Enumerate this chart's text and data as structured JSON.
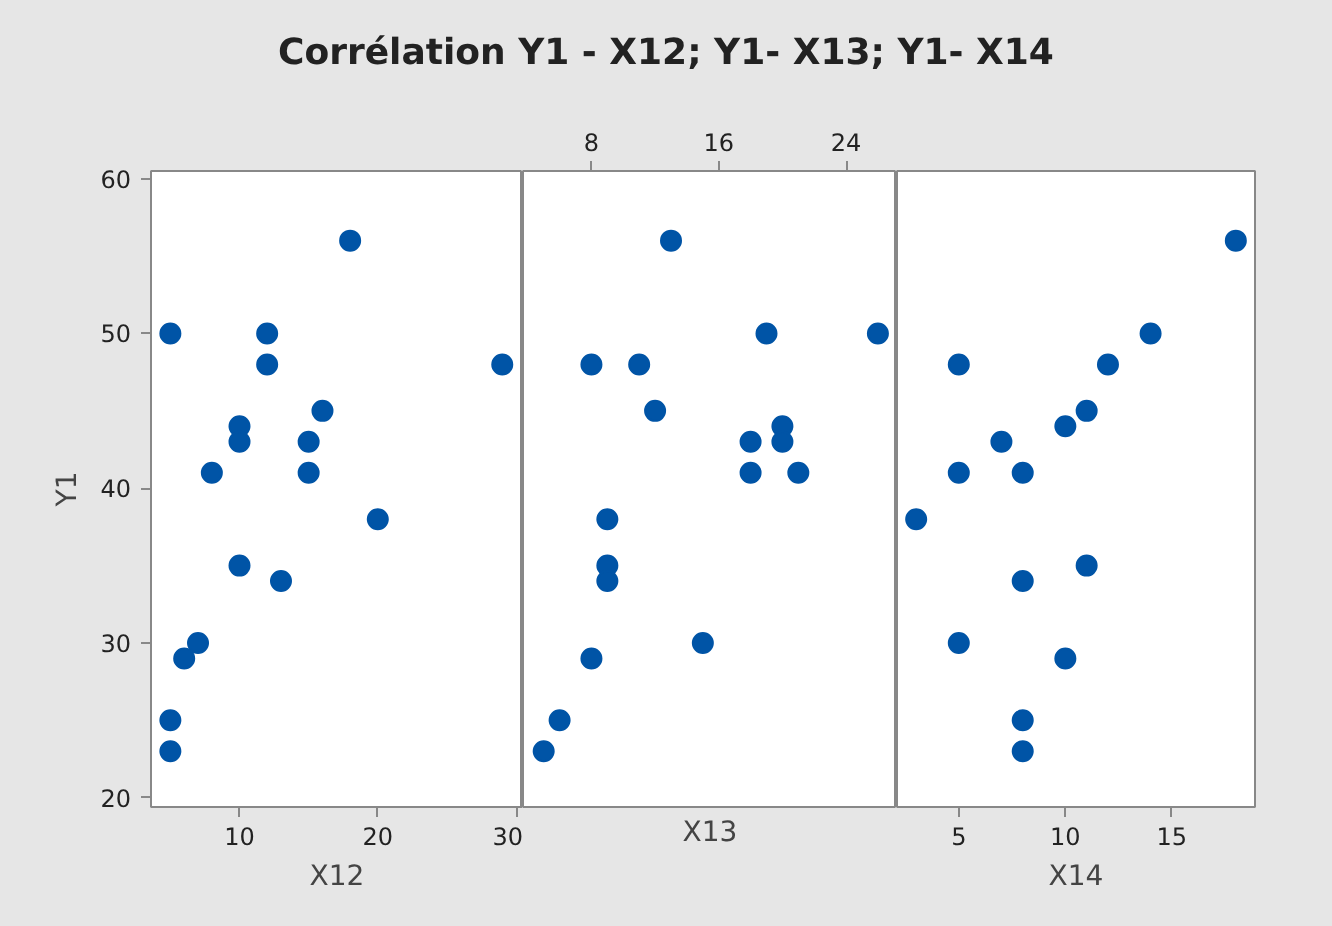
{
  "chart_data": [
    {
      "type": "scatter",
      "title": "Corrélation Y1 - X12; Y1- X13; Y1- X14",
      "xlabel": "X12",
      "ylabel": "Y1",
      "marker": "circle",
      "grid": false,
      "xlim": [
        3.6,
        30.5
      ],
      "xticks": [
        10,
        20,
        30
      ],
      "ylim": [
        19.4,
        60.5
      ],
      "yticks": [
        20,
        30,
        40,
        50,
        60
      ],
      "x": [
        5,
        18,
        12,
        12,
        29,
        16,
        10,
        10,
        15,
        8,
        15,
        20,
        10,
        13,
        7,
        6,
        5,
        5
      ],
      "series": [
        {
          "color": "#0054a6",
          "values": [
            50,
            56,
            50,
            48,
            48,
            45,
            44,
            43,
            43,
            41,
            41,
            38,
            35,
            34,
            30,
            29,
            25,
            23
          ]
        }
      ]
    },
    {
      "type": "scatter",
      "xlabel": "X13",
      "marker": "circle",
      "grid": false,
      "xlim": [
        3.7,
        27.2
      ],
      "xticks": [
        8,
        16,
        24
      ],
      "ylim": [
        19.4,
        60.5
      ],
      "tick_labels": "x",
      "x": [
        13,
        19,
        26,
        8,
        11,
        12,
        20,
        18,
        20,
        18,
        21,
        9,
        9,
        9,
        15,
        8,
        6,
        5
      ],
      "series": [
        {
          "color": "#0054a6",
          "values": [
            56,
            50,
            50,
            48,
            48,
            45,
            44,
            43,
            43,
            41,
            41,
            38,
            35,
            34,
            30,
            29,
            25,
            23
          ]
        }
      ]
    },
    {
      "type": "scatter",
      "xlabel": "X14",
      "marker": "circle",
      "grid": false,
      "xlim": [
        2.1,
        18.9
      ],
      "xticks": [
        5,
        10,
        15
      ],
      "ylim": [
        19.4,
        60.5
      ],
      "tick_labels": "x",
      "x": [
        18,
        14,
        5,
        12,
        11,
        10,
        7,
        5,
        8,
        3,
        11,
        8,
        5,
        10,
        8,
        8
      ],
      "series": [
        {
          "color": "#0054a6",
          "values": [
            56,
            50,
            48,
            48,
            45,
            44,
            43,
            41,
            41,
            38,
            35,
            34,
            30,
            29,
            25,
            23
          ]
        }
      ]
    }
  ]
}
